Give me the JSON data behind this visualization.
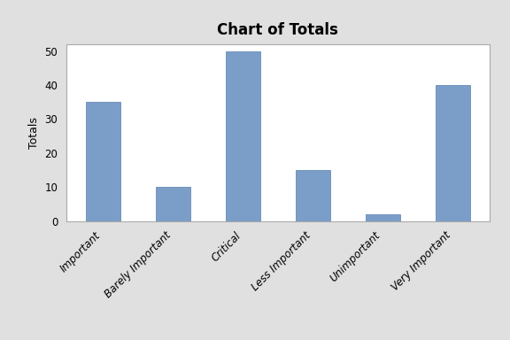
{
  "title": "Chart of Totals",
  "categories": [
    "Important",
    "Barely Important",
    "Critical",
    "Less Important",
    "Unimportant",
    "Very Important"
  ],
  "values": [
    35,
    10,
    50,
    15,
    2,
    40
  ],
  "bar_color": "#7B9EC9",
  "bar_edgecolor": "#5a7fad",
  "ylabel": "Totals",
  "ylim": [
    0,
    52
  ],
  "yticks": [
    0,
    10,
    20,
    30,
    40,
    50
  ],
  "background_color": "#E0E0E0",
  "plot_bg_color": "#FFFFFF",
  "title_fontsize": 12,
  "label_fontsize": 9,
  "tick_fontsize": 8.5,
  "bar_width": 0.5
}
